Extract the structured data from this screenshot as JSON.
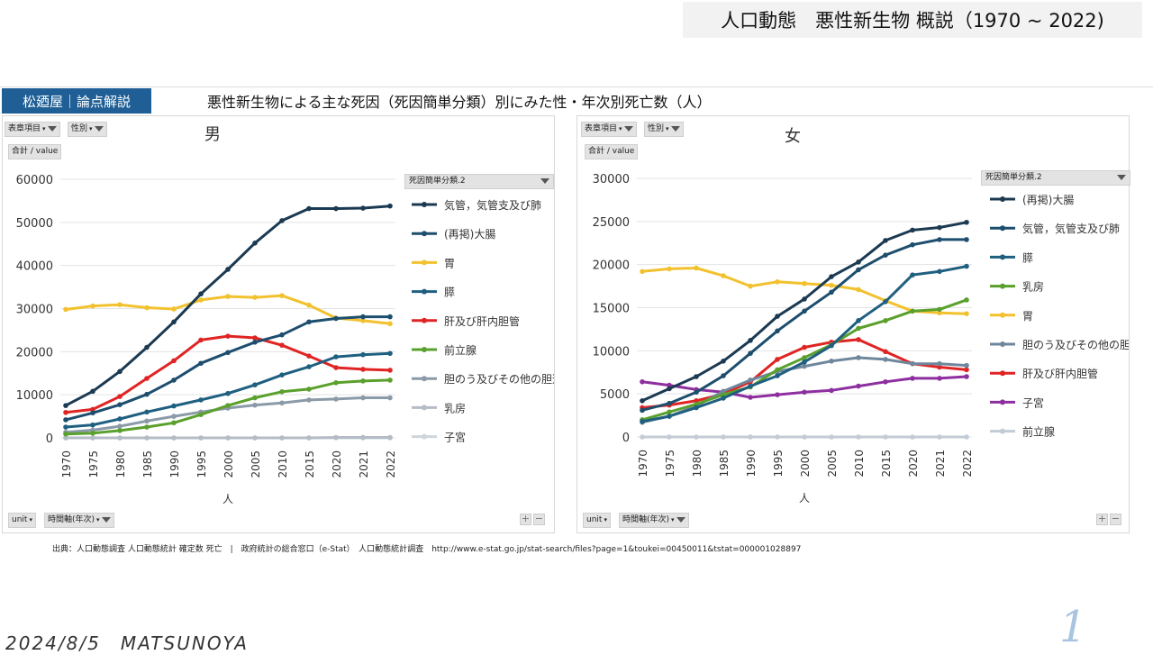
{
  "banner_title": "人口動態　悪性新生物 概説（1970 ~ 2022)",
  "brand_label": "松廼屋｜論点解説",
  "main_title": "悪性新生物による主な死因（死因簡単分類）別にみた性・年次別死亡数（人）",
  "controls": {
    "filter_item": "表章項目",
    "filter_sex": "性別",
    "value_label": "合計 / value",
    "legend_header": "死因簡単分類.2",
    "unit_label": "unit",
    "time_axis_label": "時間軸(年次)",
    "plus": "+",
    "minus": "−"
  },
  "source": "出典：人口動態調査 人口動態統計 確定数 死亡　|　政府統計の総合窓口（e-Stat）　人口動態統計調査　http://www.e-stat.go.jp/stat-search/files?page=1&toukei=00450011&tstat=000001028897",
  "footer_date": "2024/8/5　MATSUNOYA",
  "page_number": "1",
  "chart_data": [
    {
      "type": "line",
      "title": "男",
      "xlabel": "人",
      "ylabel": "",
      "ylim": [
        0,
        60000
      ],
      "yticks": [
        0,
        10000,
        20000,
        30000,
        40000,
        50000,
        60000
      ],
      "x": [
        "1970",
        "1975",
        "1980",
        "1985",
        "1990",
        "1995",
        "2000",
        "2005",
        "2010",
        "2015",
        "2020",
        "2021",
        "2022"
      ],
      "legend_position": "right",
      "series": [
        {
          "name": "気管，気管支及び肺",
          "color": "#1b3a52",
          "values": [
            7500,
            10800,
            15400,
            21000,
            26900,
            33400,
            39100,
            45200,
            50400,
            53200,
            53200,
            53300,
            53800
          ]
        },
        {
          "name": "(再掲)大腸",
          "color": "#1d4e6e",
          "values": [
            4200,
            5800,
            7700,
            10100,
            13400,
            17300,
            19800,
            22200,
            23900,
            26900,
            27700,
            28100,
            28100
          ]
        },
        {
          "name": "胃",
          "color": "#f2c12e",
          "values": [
            29800,
            30600,
            30900,
            30200,
            29900,
            32000,
            32800,
            32600,
            33000,
            30800,
            27800,
            27200,
            26500
          ]
        },
        {
          "name": "膵",
          "color": "#1f5f80",
          "values": [
            2500,
            3000,
            4400,
            6000,
            7400,
            8800,
            10300,
            12300,
            14600,
            16500,
            18800,
            19300,
            19600
          ]
        },
        {
          "name": "肝及び肝内胆管",
          "color": "#e02424",
          "values": [
            5900,
            6600,
            9600,
            13800,
            17900,
            22700,
            23600,
            23200,
            21500,
            19000,
            16300,
            15900,
            15700
          ]
        },
        {
          "name": "前立腺",
          "color": "#5aa02c",
          "values": [
            900,
            1100,
            1700,
            2500,
            3500,
            5400,
            7500,
            9300,
            10700,
            11300,
            12800,
            13200,
            13400
          ]
        },
        {
          "name": "胆のう及びその他の胆道",
          "color": "#8a9aa8",
          "values": [
            1300,
            1800,
            2700,
            3900,
            5000,
            6000,
            6900,
            7600,
            8100,
            8800,
            9000,
            9300,
            9300
          ]
        },
        {
          "name": "乳房",
          "color": "#b4bcc6",
          "values": [
            0,
            0,
            0,
            0,
            0,
            0,
            0,
            0,
            0,
            0,
            100,
            100,
            100
          ]
        },
        {
          "name": "子宮",
          "color": "#cfd5dc",
          "values": [
            0,
            0,
            0,
            0,
            0,
            0,
            0,
            0,
            0,
            0,
            0,
            0,
            0
          ]
        }
      ]
    },
    {
      "type": "line",
      "title": "女",
      "xlabel": "人",
      "ylabel": "",
      "ylim": [
        0,
        30000
      ],
      "yticks": [
        0,
        5000,
        10000,
        15000,
        20000,
        25000,
        30000
      ],
      "x": [
        "1970",
        "1975",
        "1980",
        "1985",
        "1990",
        "1995",
        "2000",
        "2005",
        "2010",
        "2015",
        "2020",
        "2021",
        "2022"
      ],
      "legend_position": "right",
      "series": [
        {
          "name": "(再掲)大腸",
          "color": "#1b3a52",
          "values": [
            4200,
            5600,
            7000,
            8800,
            11200,
            14000,
            16000,
            18600,
            20300,
            22800,
            24000,
            24300,
            24900
          ]
        },
        {
          "name": "気管，気管支及び肺",
          "color": "#1d4e6e",
          "values": [
            3100,
            3900,
            5200,
            7100,
            9700,
            12300,
            14600,
            16800,
            19400,
            21100,
            22300,
            22900,
            22900
          ]
        },
        {
          "name": "膵",
          "color": "#1f5f80",
          "values": [
            1800,
            2400,
            3400,
            4500,
            5900,
            7100,
            8700,
            10600,
            13500,
            15700,
            18800,
            19200,
            19800
          ]
        },
        {
          "name": "乳房",
          "color": "#5aa02c",
          "values": [
            2000,
            2900,
            3800,
            4900,
            5800,
            7800,
            9200,
            10700,
            12600,
            13500,
            14600,
            14800,
            15900
          ]
        },
        {
          "name": "胃",
          "color": "#f2c12e",
          "values": [
            19200,
            19500,
            19600,
            18700,
            17500,
            18000,
            17800,
            17600,
            17100,
            15800,
            14600,
            14400,
            14300
          ]
        },
        {
          "name": "胆のう及びその他の胆道",
          "color": "#6f879c",
          "values": [
            1700,
            2400,
            3600,
            5300,
            6600,
            7600,
            8200,
            8800,
            9200,
            9000,
            8500,
            8500,
            8300
          ]
        },
        {
          "name": "肝及び肝内胆管",
          "color": "#e02424",
          "values": [
            3400,
            3700,
            4200,
            5000,
            6400,
            9000,
            10400,
            11000,
            11300,
            9900,
            8500,
            8100,
            7800
          ]
        },
        {
          "name": "子宮",
          "color": "#8e2fa0",
          "values": [
            6400,
            6000,
            5500,
            5200,
            4600,
            4900,
            5200,
            5400,
            5900,
            6400,
            6800,
            6800,
            7000
          ]
        },
        {
          "name": "前立腺",
          "color": "#c3ccd6",
          "values": [
            0,
            0,
            0,
            0,
            0,
            0,
            0,
            0,
            0,
            0,
            0,
            0,
            0
          ]
        }
      ]
    }
  ]
}
